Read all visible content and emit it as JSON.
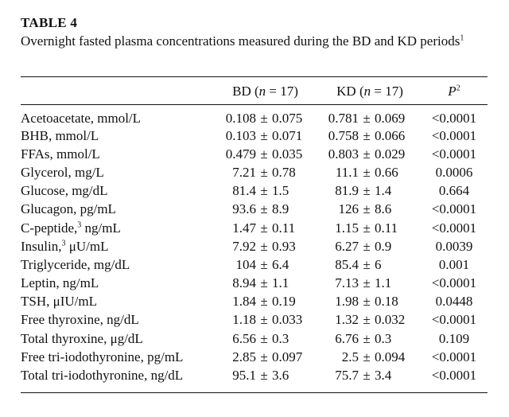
{
  "table_label": "TABLE 4",
  "caption": "Overnight fasted plasma concentrations measured during the BD and KD periods",
  "caption_footnote": "1",
  "headers": {
    "bd": "BD (n = 17)",
    "kd": "KD (n = 17)",
    "p": "P",
    "p_footnote": "2"
  },
  "rows": [
    {
      "label": "Acetoacetate, mmol/L",
      "bd_mean": "0.108",
      "bd_se": "0.075",
      "kd_mean": "0.781",
      "kd_se": "0.069",
      "p": "<0.0001"
    },
    {
      "label": "BHB, mmol/L",
      "bd_mean": "0.103",
      "bd_se": "0.071",
      "kd_mean": "0.758",
      "kd_se": "0.066",
      "p": "<0.0001"
    },
    {
      "label": "FFAs, mmol/L",
      "bd_mean": "0.479",
      "bd_se": "0.035",
      "kd_mean": "0.803",
      "kd_se": "0.029",
      "p": "<0.0001"
    },
    {
      "label": "Glycerol, mg/L",
      "bd_mean": "7.21",
      "bd_se": "0.78",
      "kd_mean": "11.1",
      "kd_se": "0.66",
      "p": "0.0006"
    },
    {
      "label": "Glucose, mg/dL",
      "bd_mean": "81.4",
      "bd_se": "1.5",
      "kd_mean": "81.9",
      "kd_se": "1.4",
      "p": "0.664"
    },
    {
      "label": "Glucagon, pg/mL",
      "bd_mean": "93.6",
      "bd_se": "8.9",
      "kd_mean": "126",
      "kd_se": "8.6",
      "p": "<0.0001"
    },
    {
      "label_pre": "C-peptide,",
      "label_sup": "3",
      "label_post": " ng/mL",
      "bd_mean": "1.47",
      "bd_se": "0.11",
      "kd_mean": "1.15",
      "kd_se": "0.11",
      "p": "<0.0001"
    },
    {
      "label_pre": "Insulin,",
      "label_sup": "3",
      "label_post": " μU/mL",
      "bd_mean": "7.92",
      "bd_se": "0.93",
      "kd_mean": "6.27",
      "kd_se": "0.9",
      "p": "0.0039"
    },
    {
      "label": "Triglyceride, mg/dL",
      "bd_mean": "104",
      "bd_se": "6.4",
      "kd_mean": "85.4",
      "kd_se": "6",
      "p": "0.001"
    },
    {
      "label": "Leptin, ng/mL",
      "bd_mean": "8.94",
      "bd_se": "1.1",
      "kd_mean": "7.13",
      "kd_se": "1.1",
      "p": "<0.0001"
    },
    {
      "label": "TSH, μIU/mL",
      "bd_mean": "1.84",
      "bd_se": "0.19",
      "kd_mean": "1.98",
      "kd_se": "0.18",
      "p": "0.0448"
    },
    {
      "label": "Free thyroxine, ng/dL",
      "bd_mean": "1.18",
      "bd_se": "0.033",
      "kd_mean": "1.32",
      "kd_se": "0.032",
      "p": "<0.0001"
    },
    {
      "label": "Total thyroxine, μg/dL",
      "bd_mean": "6.56",
      "bd_se": "0.3",
      "kd_mean": "6.76",
      "kd_se": "0.3",
      "p": "0.109"
    },
    {
      "label": "Free tri-iodothyronine, pg/mL",
      "bd_mean": "2.85",
      "bd_se": "0.097",
      "kd_mean": "2.5",
      "kd_se": "0.094",
      "p": "<0.0001"
    },
    {
      "label": "Total tri-iodothyronine, ng/dL",
      "bd_mean": "95.1",
      "bd_se": "3.6",
      "kd_mean": "75.7",
      "kd_se": "3.4",
      "p": "<0.0001"
    }
  ],
  "pm_symbol": "±"
}
